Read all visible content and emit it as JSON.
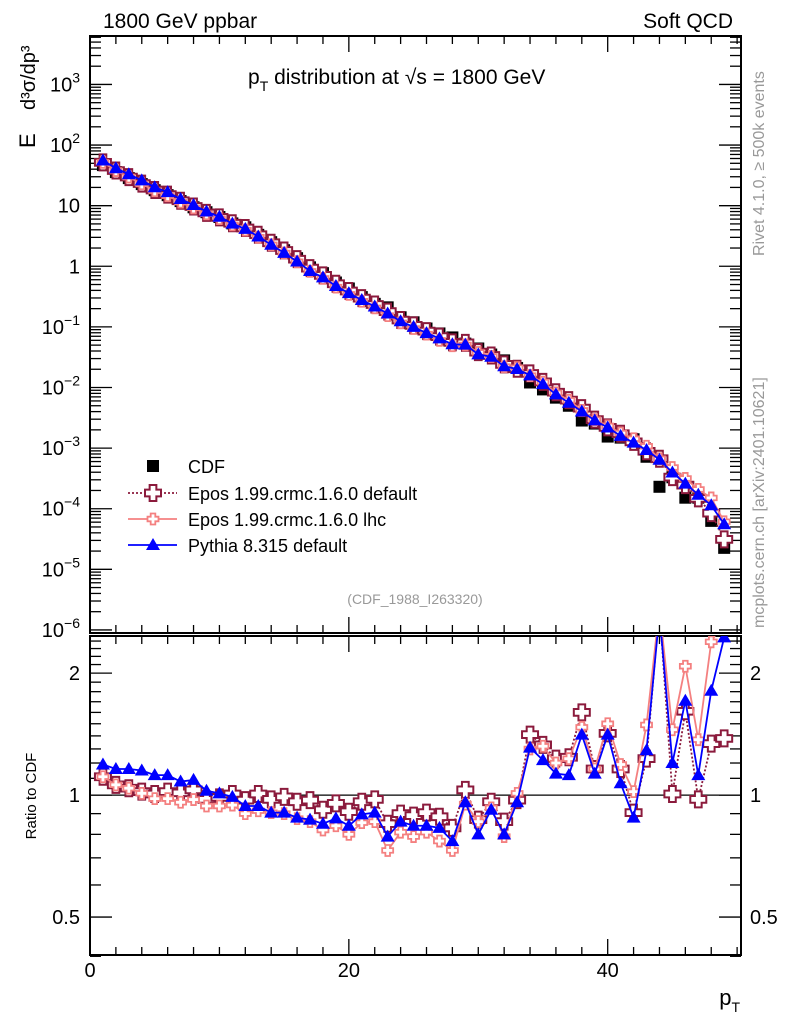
{
  "header": {
    "left_label": "1800 GeV ppbar",
    "right_label": "Soft QCD"
  },
  "side_labels": {
    "rivet": "Rivet 4.1.0, ≥ 500k events",
    "mcplots": "mcplots.cern.ch [arXiv:2401.10621]"
  },
  "colors": {
    "cdf": "#000000",
    "epos_default": "#8b1a3c",
    "epos_lhc": "#f48080",
    "pythia": "#0000ff"
  },
  "chart_data": [
    {
      "type": "scatter",
      "panel": "main",
      "title_prefix": "p",
      "title_sub": "T",
      "title_rest": " distribution at ",
      "title_sqrt": "√s = 1800 GeV",
      "ylabel_E": "E",
      "ylabel_rest": "d³σ/dp³",
      "analysis_id": "(CDF_1988_I263320)",
      "yscale": "log",
      "ylim": [
        8.9e-07,
        6300
      ],
      "xlim": [
        0,
        50.3
      ],
      "ytick_labels": [
        {
          "v": 1000.0,
          "base": "10",
          "exp": "3"
        },
        {
          "v": 100.0,
          "base": "10",
          "exp": "2"
        },
        {
          "v": 10,
          "base": "10",
          "exp": ""
        },
        {
          "v": 1,
          "base": "1",
          "exp": ""
        },
        {
          "v": 0.1,
          "base": "10",
          "exp": "−1"
        },
        {
          "v": 0.01,
          "base": "10",
          "exp": "−2"
        },
        {
          "v": 0.001,
          "base": "10",
          "exp": "−3"
        },
        {
          "v": 0.0001,
          "base": "10",
          "exp": "−4"
        },
        {
          "v": 1e-05,
          "base": "10",
          "exp": "−5"
        },
        {
          "v": 1e-06,
          "base": "10",
          "exp": "−6"
        }
      ],
      "legend_position": "bottom-left",
      "legend": [
        "CDF",
        "Epos 1.99.crmc.1.6.0 default",
        "Epos 1.99.crmc.1.6.0 lhc",
        "Pythia 8.315 default"
      ],
      "x": [
        1,
        2,
        3,
        4,
        5,
        6,
        7,
        8,
        9,
        10,
        11,
        12,
        13,
        14,
        15,
        16,
        17,
        18,
        19,
        20,
        21,
        22,
        23,
        24,
        25,
        26,
        27,
        28,
        29,
        30,
        31,
        32,
        33,
        34,
        35,
        36,
        37,
        38,
        39,
        40,
        41,
        42,
        43,
        44,
        45,
        46,
        47,
        48,
        49
      ],
      "cdf": [
        46.7,
        35.8,
        28.5,
        22.7,
        18.0,
        14.9,
        11.9,
        9.4,
        7.8,
        6.5,
        5.1,
        4.4,
        3.3,
        2.5,
        1.84,
        1.36,
        0.96,
        0.77,
        0.54,
        0.43,
        0.31,
        0.24,
        0.21,
        0.144,
        0.119,
        0.094,
        0.078,
        0.067,
        0.053,
        0.044,
        0.035,
        0.028,
        0.021,
        0.0121,
        0.0093,
        0.0068,
        0.005,
        0.00285,
        0.00254,
        0.00155,
        0.00149,
        0.0014,
        0.00072,
        0.00023,
        0.00033,
        0.000152,
        0.000152,
        6.3e-05,
        2.26e-05
      ],
      "note": "MC curves in main panel = cdf x ratio"
    },
    {
      "type": "line",
      "panel": "ratio",
      "ylabel": "Ratio to CDF",
      "xlabel_main": "p",
      "xlabel_sub": "T",
      "yscale": "log",
      "ylim": [
        0.403,
        2.47
      ],
      "xlim": [
        0,
        50.3
      ],
      "xtick_labels": [
        "0",
        "20",
        "40"
      ],
      "xticks": [
        0,
        20,
        40
      ],
      "ytick_labels": [
        "0.5",
        "1",
        "2"
      ],
      "yticks": [
        0.5,
        1,
        2
      ],
      "series": [
        {
          "name": "Epos 1.99.crmc.1.6.0 default",
          "values": [
            1.11,
            1.06,
            1.04,
            1.02,
            1.006,
            1.02,
            1.013,
            1.03,
            0.976,
            0.987,
            1.006,
            0.972,
            1.006,
            0.976,
            0.99,
            0.963,
            0.972,
            0.92,
            0.954,
            0.91,
            0.963,
            0.976,
            0.85,
            0.9,
            0.89,
            0.905,
            0.884,
            0.83,
            1.03,
            0.87,
            0.963,
            0.86,
            0.972,
            1.41,
            1.33,
            1.23,
            1.24,
            1.6,
            1.16,
            1.42,
            1.16,
            0.905,
            1.23,
            2.9,
            1.006,
            1.61,
            0.976,
            1.34,
            1.38
          ]
        },
        {
          "name": "Epos 1.99.crmc.1.6.0 lhc",
          "values": [
            1.11,
            1.06,
            1.04,
            1.01,
            0.98,
            0.98,
            0.96,
            0.975,
            0.94,
            0.94,
            0.945,
            0.9,
            0.915,
            0.905,
            0.9,
            0.875,
            0.86,
            0.82,
            0.84,
            0.8,
            0.855,
            0.86,
            0.73,
            0.81,
            0.79,
            0.81,
            0.77,
            0.73,
            0.95,
            0.86,
            0.93,
            0.79,
            1.01,
            1.3,
            1.32,
            1.2,
            1.23,
            1.47,
            1.16,
            1.5,
            1.19,
            1.02,
            1.49,
            2.9,
            1.45,
            2.08,
            1.37,
            2.39,
            2.7
          ]
        },
        {
          "name": "Pythia 8.315 default",
          "values": [
            1.19,
            1.16,
            1.16,
            1.15,
            1.12,
            1.12,
            1.08,
            1.09,
            1.025,
            1.01,
            0.99,
            0.94,
            0.94,
            0.905,
            0.905,
            0.88,
            0.87,
            0.85,
            0.876,
            0.84,
            0.896,
            0.905,
            0.79,
            0.86,
            0.84,
            0.84,
            0.83,
            0.77,
            0.96,
            0.8,
            0.92,
            0.8,
            0.96,
            1.31,
            1.22,
            1.13,
            1.12,
            1.41,
            1.13,
            1.41,
            1.07,
            0.88,
            1.29,
            2.8,
            1.2,
            1.71,
            1.12,
            1.81,
            2.45
          ]
        }
      ]
    }
  ]
}
